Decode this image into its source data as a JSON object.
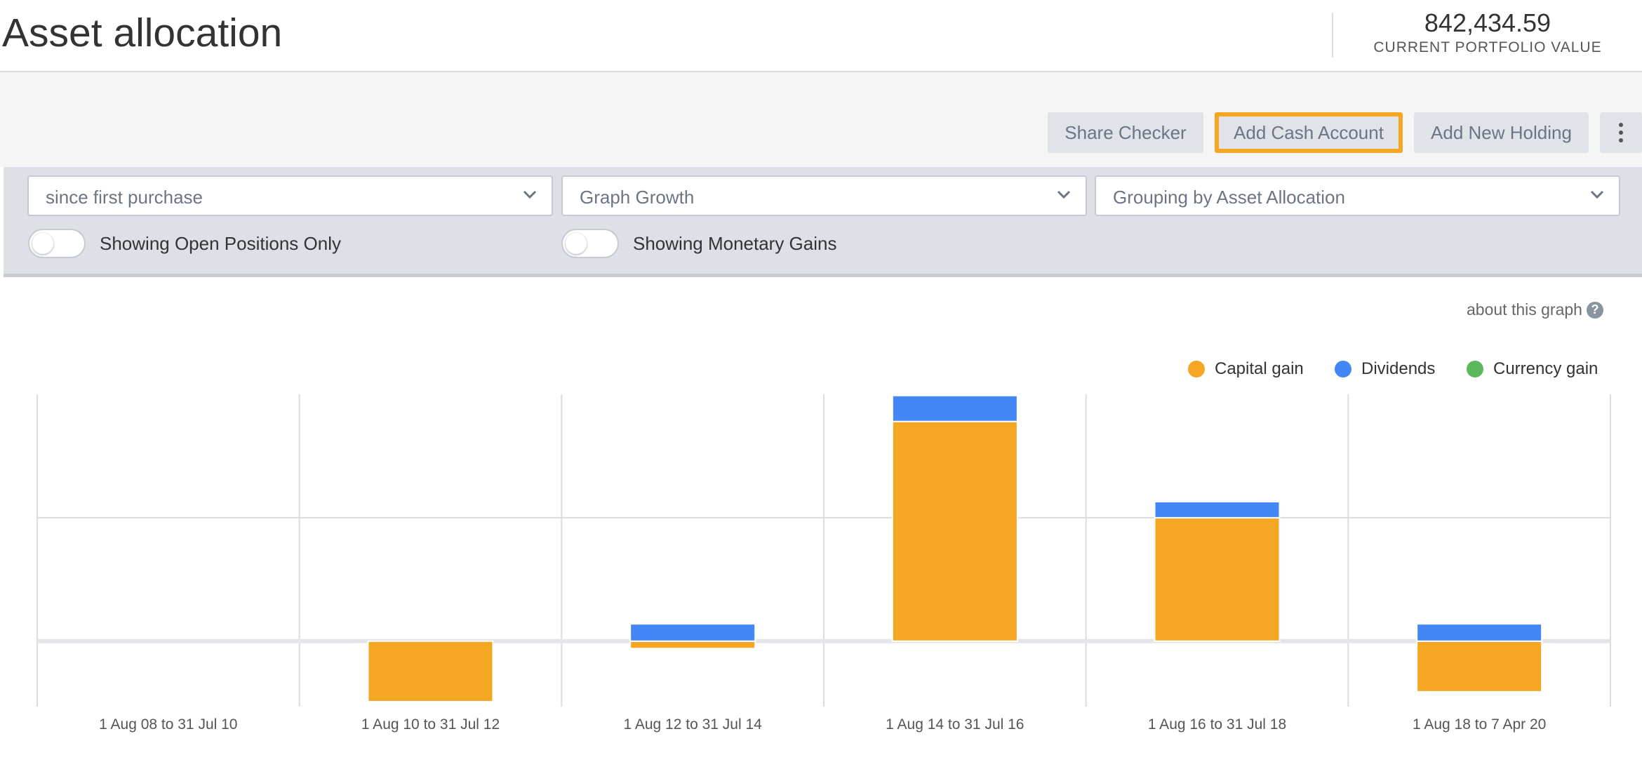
{
  "header": {
    "title": "Asset allocation",
    "portfolio_value": "842,434.59",
    "portfolio_label": "CURRENT PORTFOLIO VALUE"
  },
  "actions": {
    "share_checker": "Share Checker",
    "add_cash_account": "Add Cash Account",
    "add_new_holding": "Add New Holding",
    "more_icon": "kebab-menu-icon"
  },
  "filters": {
    "period": "since first purchase",
    "graph_type": "Graph Growth",
    "grouping": "Grouping by Asset Allocation",
    "toggle_open_positions": "Showing Open Positions Only",
    "toggle_monetary_gains": "Showing Monetary Gains"
  },
  "chart_link": {
    "about": "about this graph",
    "help_icon": "question-icon"
  },
  "colors": {
    "capital_gain": "#f5a623",
    "dividends": "#4287f5",
    "currency_gain": "#5cb85c"
  },
  "chart_data": {
    "type": "bar",
    "stacked": true,
    "categories": [
      "1 Aug 08 to 31 Jul 10",
      "1 Aug 10 to 31 Jul 12",
      "1 Aug 12 to 31 Jul 14",
      "1 Aug 14 to 31 Jul 16",
      "1 Aug 16 to 31 Jul 18",
      "1 Aug 18 to 7 Apr 20"
    ],
    "series": [
      {
        "name": "Capital gain",
        "color": "#f5a623",
        "values": [
          0,
          -49,
          -6,
          178,
          100,
          -41
        ]
      },
      {
        "name": "Dividends",
        "color": "#4287f5",
        "values": [
          0,
          0,
          14,
          21,
          13,
          14
        ]
      },
      {
        "name": "Currency gain",
        "color": "#5cb85c",
        "values": [
          0,
          0,
          0,
          0,
          0,
          0
        ]
      }
    ],
    "ylim": [
      -53,
      200
    ],
    "grid": true,
    "legend": "top-right"
  }
}
